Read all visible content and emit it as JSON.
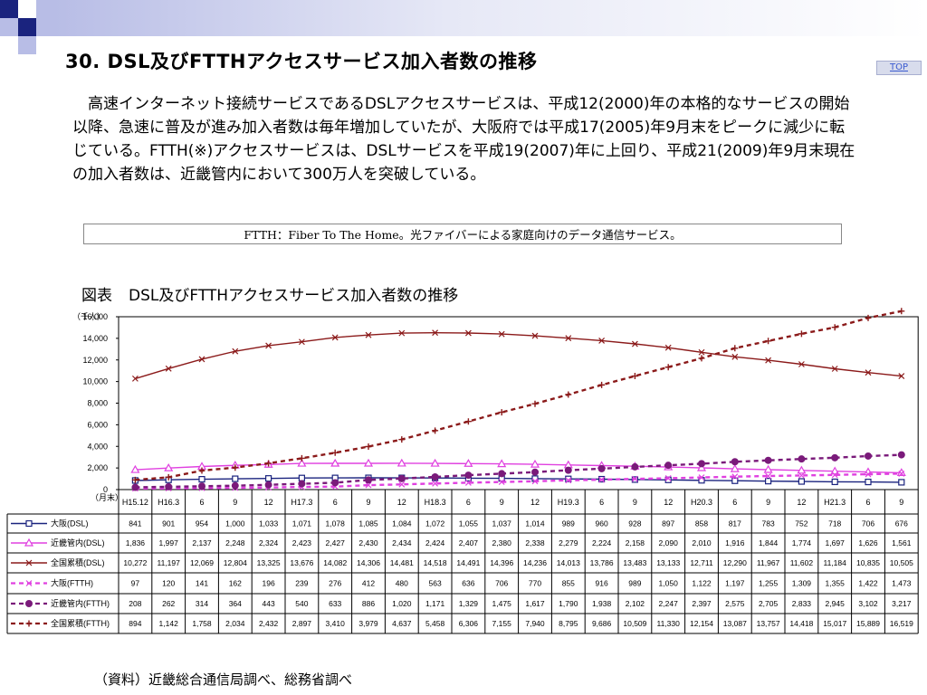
{
  "page": {
    "title": "30. DSL及びFTTHアクセスサービス加入者数の推移",
    "top_link": "TOP",
    "intro": "高速インターネット接続サービスであるDSLアクセスサービスは、平成12(2000)年の本格的なサービスの開始以降、急速に普及が進み加入者数は毎年増加していたが、大阪府では平成17(2005)年9月末をピークに減少に転じている。FTTH(※)アクセスサービスは、DSLサービスを平成19(2007)年に上回り、平成21(2009)年9月末現在の加入者数は、近畿管内において300万人を突破している。",
    "note": "FTTH：Fiber To The Home。光ファイバーによる家庭向けのデータ通信サービス。",
    "figure_label": "図表",
    "figure_title": "DSL及びFTTHアクセスサービス加入者数の推移",
    "source": "（資料）近畿総合通信局調べ、総務省調べ"
  },
  "colors": {
    "accent_dark": "#1a237e",
    "accent_light": "#b8bde6"
  },
  "chart_data": {
    "type": "line",
    "y_unit": "（千人）",
    "x_unit": "（月末）",
    "ylim": [
      0,
      16000
    ],
    "yticks": [
      "0",
      "2,000",
      "4,000",
      "6,000",
      "8,000",
      "10,000",
      "12,000",
      "14,000",
      "16,000"
    ],
    "grid": false,
    "categories": [
      "H15.12",
      "H16.3",
      "6",
      "9",
      "12",
      "H17.3",
      "6",
      "9",
      "12",
      "H18.3",
      "6",
      "9",
      "12",
      "H19.3",
      "6",
      "9",
      "12",
      "H20.3",
      "6",
      "9",
      "12",
      "H21.3",
      "6",
      "9"
    ],
    "series": [
      {
        "name": "大阪(DSL)",
        "color": "#1a237e",
        "dashed": false,
        "marker": "square",
        "values": [
          841,
          901,
          954,
          1000,
          1033,
          1071,
          1078,
          1085,
          1084,
          1072,
          1055,
          1037,
          1014,
          989,
          960,
          928,
          897,
          858,
          817,
          783,
          752,
          718,
          706,
          676
        ],
        "labels": [
          "841",
          "901",
          "954",
          "1,000",
          "1,033",
          "1,071",
          "1,078",
          "1,085",
          "1,084",
          "1,072",
          "1,055",
          "1,037",
          "1,014",
          "989",
          "960",
          "928",
          "897",
          "858",
          "817",
          "783",
          "752",
          "718",
          "706",
          "676"
        ]
      },
      {
        "name": "近畿管内(DSL)",
        "color": "#e040e0",
        "dashed": false,
        "marker": "triangle",
        "values": [
          1836,
          1997,
          2137,
          2248,
          2324,
          2423,
          2427,
          2430,
          2434,
          2424,
          2407,
          2380,
          2338,
          2279,
          2224,
          2158,
          2090,
          2010,
          1916,
          1844,
          1774,
          1697,
          1626,
          1561
        ],
        "labels": [
          "1,836",
          "1,997",
          "2,137",
          "2,248",
          "2,324",
          "2,423",
          "2,427",
          "2,430",
          "2,434",
          "2,424",
          "2,407",
          "2,380",
          "2,338",
          "2,279",
          "2,224",
          "2,158",
          "2,090",
          "2,010",
          "1,916",
          "1,844",
          "1,774",
          "1,697",
          "1,626",
          "1,561"
        ]
      },
      {
        "name": "全国累積(DSL)",
        "color": "#8b1a1a",
        "dashed": false,
        "marker": "x",
        "values": [
          10272,
          11197,
          12069,
          12804,
          13325,
          13676,
          14082,
          14306,
          14481,
          14518,
          14491,
          14396,
          14236,
          14013,
          13786,
          13483,
          13133,
          12711,
          12290,
          11967,
          11602,
          11184,
          10835,
          10505
        ],
        "labels": [
          "10,272",
          "11,197",
          "12,069",
          "12,804",
          "13,325",
          "13,676",
          "14,082",
          "14,306",
          "14,481",
          "14,518",
          "14,491",
          "14,396",
          "14,236",
          "14,013",
          "13,786",
          "13,483",
          "13,133",
          "12,711",
          "12,290",
          "11,967",
          "11,602",
          "11,184",
          "10,835",
          "10,505"
        ]
      },
      {
        "name": "大阪(FTTH)",
        "color": "#e040e0",
        "dashed": true,
        "marker": "x",
        "values": [
          97,
          120,
          141,
          162,
          196,
          239,
          276,
          412,
          480,
          563,
          636,
          706,
          770,
          855,
          916,
          989,
          1050,
          1122,
          1197,
          1255,
          1309,
          1355,
          1422,
          1473
        ],
        "labels": [
          "97",
          "120",
          "141",
          "162",
          "196",
          "239",
          "276",
          "412",
          "480",
          "563",
          "636",
          "706",
          "770",
          "855",
          "916",
          "989",
          "1,050",
          "1,122",
          "1,197",
          "1,255",
          "1,309",
          "1,355",
          "1,422",
          "1,473"
        ]
      },
      {
        "name": "近畿管内(FTTH)",
        "color": "#7a1a7a",
        "dashed": true,
        "marker": "circle",
        "values": [
          208,
          262,
          314,
          364,
          443,
          540,
          633,
          886,
          1020,
          1171,
          1329,
          1475,
          1617,
          1790,
          1938,
          2102,
          2247,
          2397,
          2575,
          2705,
          2833,
          2945,
          3102,
          3217
        ],
        "labels": [
          "208",
          "262",
          "314",
          "364",
          "443",
          "540",
          "633",
          "886",
          "1,020",
          "1,171",
          "1,329",
          "1,475",
          "1,617",
          "1,790",
          "1,938",
          "2,102",
          "2,247",
          "2,397",
          "2,575",
          "2,705",
          "2,833",
          "2,945",
          "3,102",
          "3,217"
        ]
      },
      {
        "name": "全国累積(FTTH)",
        "color": "#8b1a1a",
        "dashed": true,
        "marker": "plus",
        "values": [
          894,
          1142,
          1758,
          2034,
          2432,
          2897,
          3410,
          3979,
          4637,
          5458,
          6306,
          7155,
          7940,
          8795,
          9686,
          10509,
          11330,
          12154,
          13087,
          13757,
          14418,
          15017,
          15889,
          16519
        ],
        "labels": [
          "894",
          "1,142",
          "1,758",
          "2,034",
          "2,432",
          "2,897",
          "3,410",
          "3,979",
          "4,637",
          "5,458",
          "6,306",
          "7,155",
          "7,940",
          "8,795",
          "9,686",
          "10,509",
          "11,330",
          "12,154",
          "13,087",
          "13,757",
          "14,418",
          "15,017",
          "15,889",
          "16,519"
        ]
      }
    ]
  }
}
